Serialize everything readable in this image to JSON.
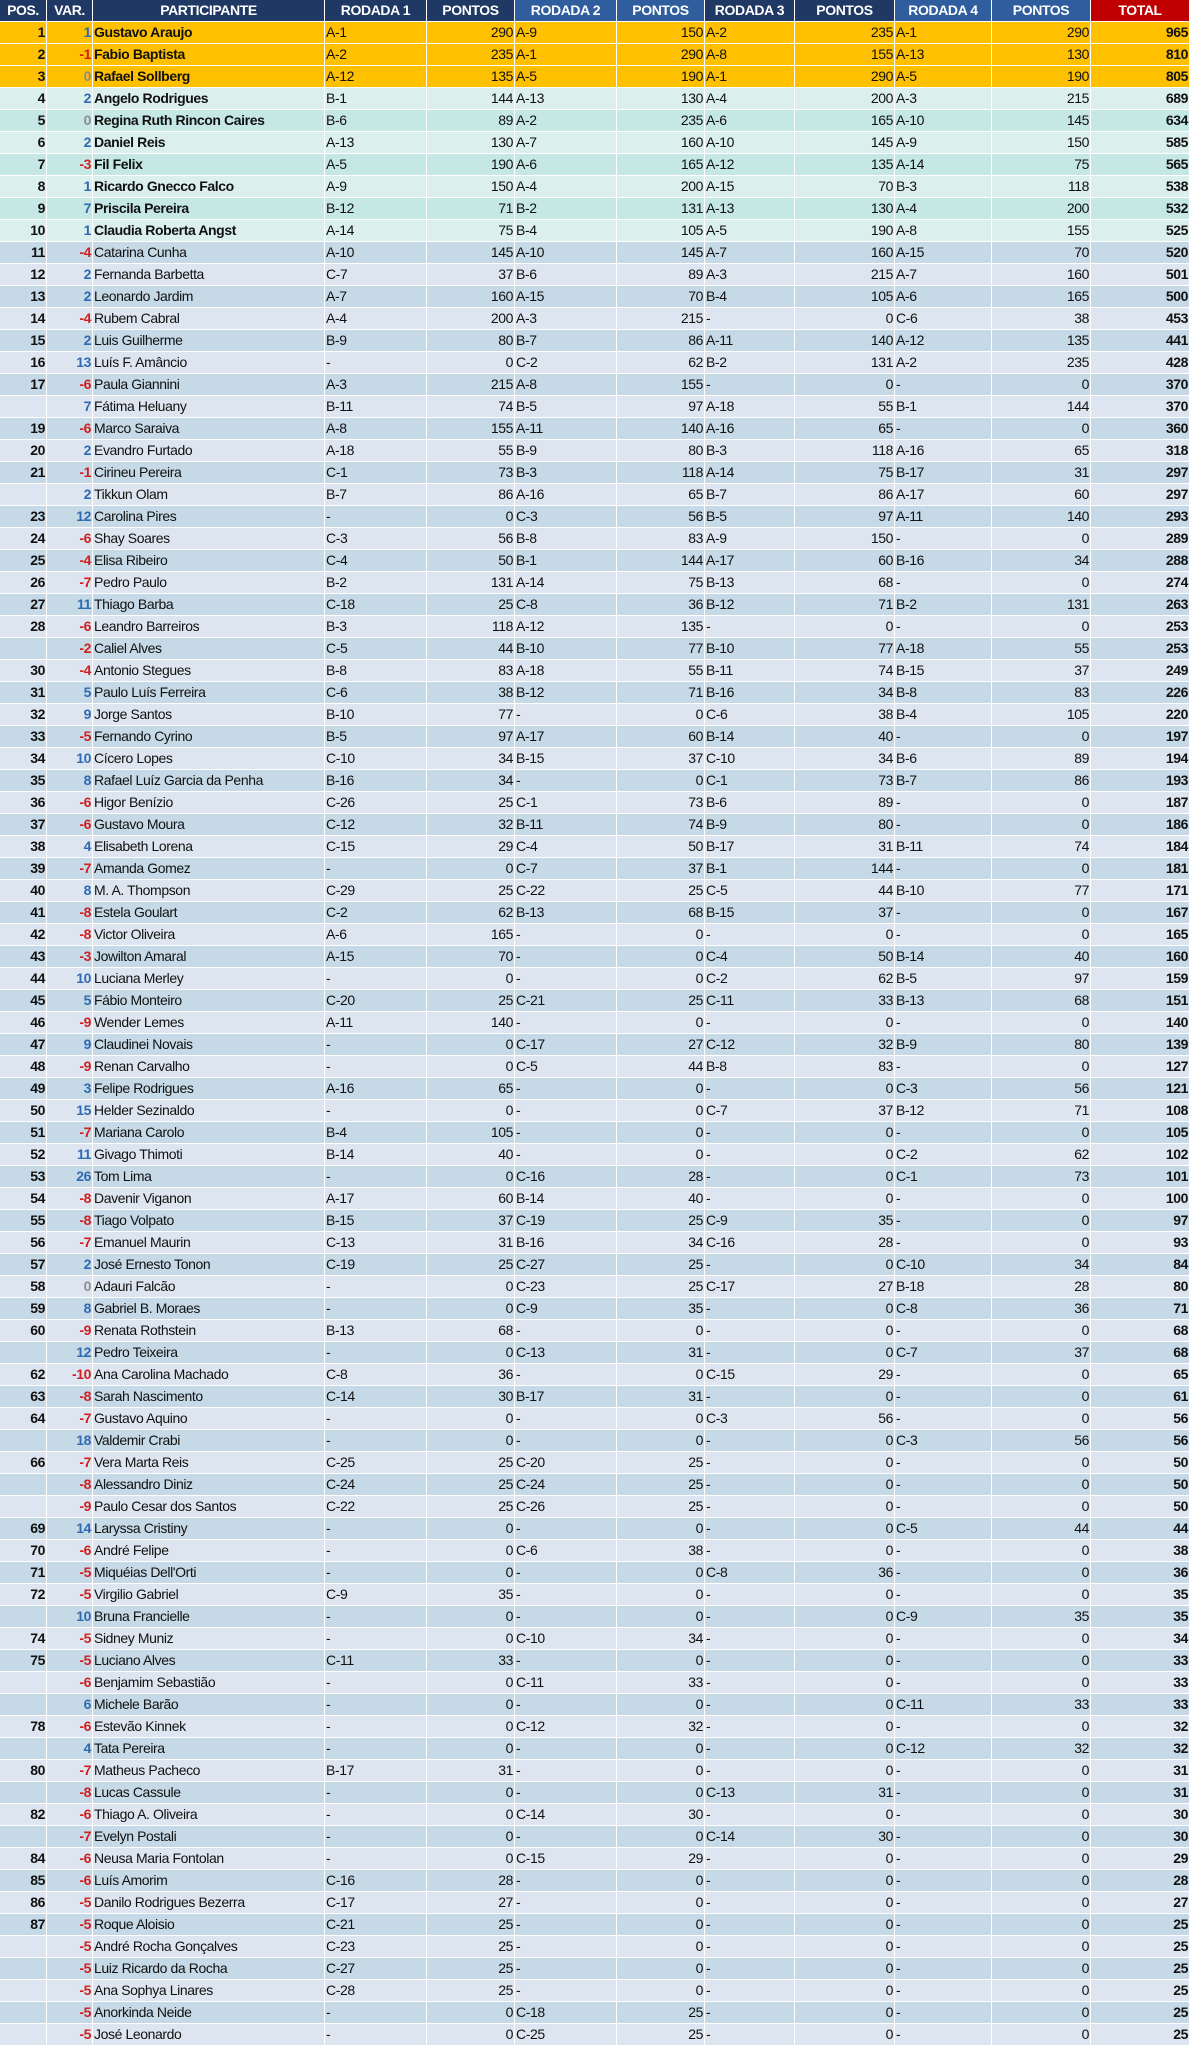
{
  "colors": {
    "header": "#203864",
    "header_alt": "#2f5d9e",
    "total_header": "#c00000",
    "top3": "#ffc000",
    "top10_a": "#c5e8e4",
    "top10_b": "#dbefed",
    "rest_a": "#c6d9e7",
    "rest_b": "#dde6f0",
    "var_positive": "#2e6ab3",
    "var_negative": "#d01f1f",
    "var_zero": "#8c8c8c"
  },
  "headers": [
    "POS.",
    "VAR.",
    "PARTICIPANTE",
    "RODADA 1",
    "PONTOS",
    "RODADA 2",
    "PONTOS",
    "RODADA 3",
    "PONTOS",
    "RODADA 4",
    "PONTOS",
    "TOTAL"
  ],
  "rows": [
    [
      "1",
      "1",
      "Gustavo Araujo",
      "A-1",
      "290",
      "A-9",
      "150",
      "A-2",
      "235",
      "A-1",
      "290",
      "965"
    ],
    [
      "2",
      "-1",
      "Fabio Baptista",
      "A-2",
      "235",
      "A-1",
      "290",
      "A-8",
      "155",
      "A-13",
      "130",
      "810"
    ],
    [
      "3",
      "0",
      "Rafael Sollberg",
      "A-12",
      "135",
      "A-5",
      "190",
      "A-1",
      "290",
      "A-5",
      "190",
      "805"
    ],
    [
      "4",
      "2",
      "Angelo Rodrigues",
      "B-1",
      "144",
      "A-13",
      "130",
      "A-4",
      "200",
      "A-3",
      "215",
      "689"
    ],
    [
      "5",
      "0",
      "Regina Ruth Rincon Caires",
      "B-6",
      "89",
      "A-2",
      "235",
      "A-6",
      "165",
      "A-10",
      "145",
      "634"
    ],
    [
      "6",
      "2",
      "Daniel Reis",
      "A-13",
      "130",
      "A-7",
      "160",
      "A-10",
      "145",
      "A-9",
      "150",
      "585"
    ],
    [
      "7",
      "-3",
      "Fil Felix",
      "A-5",
      "190",
      "A-6",
      "165",
      "A-12",
      "135",
      "A-14",
      "75",
      "565"
    ],
    [
      "8",
      "1",
      "Ricardo Gnecco Falco",
      "A-9",
      "150",
      "A-4",
      "200",
      "A-15",
      "70",
      "B-3",
      "118",
      "538"
    ],
    [
      "9",
      "7",
      "Priscila Pereira",
      "B-12",
      "71",
      "B-2",
      "131",
      "A-13",
      "130",
      "A-4",
      "200",
      "532"
    ],
    [
      "10",
      "1",
      "Claudia Roberta Angst",
      "A-14",
      "75",
      "B-4",
      "105",
      "A-5",
      "190",
      "A-8",
      "155",
      "525"
    ],
    [
      "11",
      "-4",
      "Catarina Cunha",
      "A-10",
      "145",
      "A-10",
      "145",
      "A-7",
      "160",
      "A-15",
      "70",
      "520"
    ],
    [
      "12",
      "2",
      "Fernanda Barbetta",
      "C-7",
      "37",
      "B-6",
      "89",
      "A-3",
      "215",
      "A-7",
      "160",
      "501"
    ],
    [
      "13",
      "2",
      "Leonardo Jardim",
      "A-7",
      "160",
      "A-15",
      "70",
      "B-4",
      "105",
      "A-6",
      "165",
      "500"
    ],
    [
      "14",
      "-4",
      "Rubem Cabral",
      "A-4",
      "200",
      "A-3",
      "215",
      "-",
      "0",
      "C-6",
      "38",
      "453"
    ],
    [
      "15",
      "2",
      "Luis Guilherme",
      "B-9",
      "80",
      "B-7",
      "86",
      "A-11",
      "140",
      "A-12",
      "135",
      "441"
    ],
    [
      "16",
      "13",
      "Luís F. Amâncio",
      "-",
      "0",
      "C-2",
      "62",
      "B-2",
      "131",
      "A-2",
      "235",
      "428"
    ],
    [
      "17",
      "-6",
      "Paula Giannini",
      "A-3",
      "215",
      "A-8",
      "155",
      "-",
      "0",
      "-",
      "0",
      "370"
    ],
    [
      "",
      "7",
      "Fátima Heluany",
      "B-11",
      "74",
      "B-5",
      "97",
      "A-18",
      "55",
      "B-1",
      "144",
      "370"
    ],
    [
      "19",
      "-6",
      "Marco Saraiva",
      "A-8",
      "155",
      "A-11",
      "140",
      "A-16",
      "65",
      "-",
      "0",
      "360"
    ],
    [
      "20",
      "2",
      "Evandro Furtado",
      "A-18",
      "55",
      "B-9",
      "80",
      "B-3",
      "118",
      "A-16",
      "65",
      "318"
    ],
    [
      "21",
      "-1",
      "Cirineu Pereira",
      "C-1",
      "73",
      "B-3",
      "118",
      "A-14",
      "75",
      "B-17",
      "31",
      "297"
    ],
    [
      "",
      "2",
      "Tikkun Olam",
      "B-7",
      "86",
      "A-16",
      "65",
      "B-7",
      "86",
      "A-17",
      "60",
      "297"
    ],
    [
      "23",
      "12",
      "Carolina Pires",
      "-",
      "0",
      "C-3",
      "56",
      "B-5",
      "97",
      "A-11",
      "140",
      "293"
    ],
    [
      "24",
      "-6",
      "Shay Soares",
      "C-3",
      "56",
      "B-8",
      "83",
      "A-9",
      "150",
      "-",
      "0",
      "289"
    ],
    [
      "25",
      "-4",
      "Elisa Ribeiro",
      "C-4",
      "50",
      "B-1",
      "144",
      "A-17",
      "60",
      "B-16",
      "34",
      "288"
    ],
    [
      "26",
      "-7",
      "Pedro Paulo",
      "B-2",
      "131",
      "A-14",
      "75",
      "B-13",
      "68",
      "-",
      "0",
      "274"
    ],
    [
      "27",
      "11",
      "Thiago Barba",
      "C-18",
      "25",
      "C-8",
      "36",
      "B-12",
      "71",
      "B-2",
      "131",
      "263"
    ],
    [
      "28",
      "-6",
      "Leandro Barreiros",
      "B-3",
      "118",
      "A-12",
      "135",
      "-",
      "0",
      "-",
      "0",
      "253"
    ],
    [
      "",
      "-2",
      "Caliel Alves",
      "C-5",
      "44",
      "B-10",
      "77",
      "B-10",
      "77",
      "A-18",
      "55",
      "253"
    ],
    [
      "30",
      "-4",
      "Antonio Stegues",
      "B-8",
      "83",
      "A-18",
      "55",
      "B-11",
      "74",
      "B-15",
      "37",
      "249"
    ],
    [
      "31",
      "5",
      "Paulo Luís Ferreira",
      "C-6",
      "38",
      "B-12",
      "71",
      "B-16",
      "34",
      "B-8",
      "83",
      "226"
    ],
    [
      "32",
      "9",
      "Jorge Santos",
      "B-10",
      "77",
      "-",
      "0",
      "C-6",
      "38",
      "B-4",
      "105",
      "220"
    ],
    [
      "33",
      "-5",
      "Fernando Cyrino",
      "B-5",
      "97",
      "A-17",
      "60",
      "B-14",
      "40",
      "-",
      "0",
      "197"
    ],
    [
      "34",
      "10",
      "Cícero Lopes",
      "C-10",
      "34",
      "B-15",
      "37",
      "C-10",
      "34",
      "B-6",
      "89",
      "194"
    ],
    [
      "35",
      "8",
      "Rafael Luíz Garcia da Penha",
      "B-16",
      "34",
      "-",
      "0",
      "C-1",
      "73",
      "B-7",
      "86",
      "193"
    ],
    [
      "36",
      "-6",
      "Higor Benízio",
      "C-26",
      "25",
      "C-1",
      "73",
      "B-6",
      "89",
      "-",
      "0",
      "187"
    ],
    [
      "37",
      "-6",
      "Gustavo Moura",
      "C-12",
      "32",
      "B-11",
      "74",
      "B-9",
      "80",
      "-",
      "0",
      "186"
    ],
    [
      "38",
      "4",
      "Elisabeth Lorena",
      "C-15",
      "29",
      "C-4",
      "50",
      "B-17",
      "31",
      "B-11",
      "74",
      "184"
    ],
    [
      "39",
      "-7",
      "Amanda Gomez",
      "-",
      "0",
      "C-7",
      "37",
      "B-1",
      "144",
      "-",
      "0",
      "181"
    ],
    [
      "40",
      "8",
      "M. A. Thompson",
      "C-29",
      "25",
      "C-22",
      "25",
      "C-5",
      "44",
      "B-10",
      "77",
      "171"
    ],
    [
      "41",
      "-8",
      "Estela Goulart",
      "C-2",
      "62",
      "B-13",
      "68",
      "B-15",
      "37",
      "-",
      "0",
      "167"
    ],
    [
      "42",
      "-8",
      "Victor Oliveira",
      "A-6",
      "165",
      "-",
      "0",
      "-",
      "0",
      "-",
      "0",
      "165"
    ],
    [
      "43",
      "-3",
      "Jowilton Amaral",
      "A-15",
      "70",
      "-",
      "0",
      "C-4",
      "50",
      "B-14",
      "40",
      "160"
    ],
    [
      "44",
      "10",
      "Luciana Merley",
      "-",
      "0",
      "-",
      "0",
      "C-2",
      "62",
      "B-5",
      "97",
      "159"
    ],
    [
      "45",
      "5",
      "Fábio Monteiro",
      "C-20",
      "25",
      "C-21",
      "25",
      "C-11",
      "33",
      "B-13",
      "68",
      "151"
    ],
    [
      "46",
      "-9",
      "Wender Lemes",
      "A-11",
      "140",
      "-",
      "0",
      "-",
      "0",
      "-",
      "0",
      "140"
    ],
    [
      "47",
      "9",
      "Claudinei Novais",
      "-",
      "0",
      "C-17",
      "27",
      "C-12",
      "32",
      "B-9",
      "80",
      "139"
    ],
    [
      "48",
      "-9",
      "Renan Carvalho",
      "-",
      "0",
      "C-5",
      "44",
      "B-8",
      "83",
      "-",
      "0",
      "127"
    ],
    [
      "49",
      "3",
      "Felipe Rodrigues",
      "A-16",
      "65",
      "-",
      "0",
      "-",
      "0",
      "C-3",
      "56",
      "121"
    ],
    [
      "50",
      "15",
      "Helder Sezinaldo",
      "-",
      "0",
      "-",
      "0",
      "C-7",
      "37",
      "B-12",
      "71",
      "108"
    ],
    [
      "51",
      "-7",
      "Mariana Carolo",
      "B-4",
      "105",
      "-",
      "0",
      "-",
      "0",
      "-",
      "0",
      "105"
    ],
    [
      "52",
      "11",
      "Givago Thimoti",
      "B-14",
      "40",
      "-",
      "0",
      "-",
      "0",
      "C-2",
      "62",
      "102"
    ],
    [
      "53",
      "26",
      "Tom Lima",
      "-",
      "0",
      "C-16",
      "28",
      "-",
      "0",
      "C-1",
      "73",
      "101"
    ],
    [
      "54",
      "-8",
      "Davenir Viganon",
      "A-17",
      "60",
      "B-14",
      "40",
      "-",
      "0",
      "-",
      "0",
      "100"
    ],
    [
      "55",
      "-8",
      "Tiago Volpato",
      "B-15",
      "37",
      "C-19",
      "25",
      "C-9",
      "35",
      "-",
      "0",
      "97"
    ],
    [
      "56",
      "-7",
      "Emanuel Maurin",
      "C-13",
      "31",
      "B-16",
      "34",
      "C-16",
      "28",
      "-",
      "0",
      "93"
    ],
    [
      "57",
      "2",
      "José Ernesto Tonon",
      "C-19",
      "25",
      "C-27",
      "25",
      "-",
      "0",
      "C-10",
      "34",
      "84"
    ],
    [
      "58",
      "0",
      "Adauri Falcão",
      "-",
      "0",
      "C-23",
      "25",
      "C-17",
      "27",
      "B-18",
      "28",
      "80"
    ],
    [
      "59",
      "8",
      "Gabriel B. Moraes",
      "-",
      "0",
      "C-9",
      "35",
      "-",
      "0",
      "C-8",
      "36",
      "71"
    ],
    [
      "60",
      "-9",
      "Renata Rothstein",
      "B-13",
      "68",
      "-",
      "0",
      "-",
      "0",
      "-",
      "0",
      "68"
    ],
    [
      "",
      "12",
      "Pedro Teixeira",
      "-",
      "0",
      "C-13",
      "31",
      "-",
      "0",
      "C-7",
      "37",
      "68"
    ],
    [
      "62",
      "-10",
      "Ana Carolina Machado",
      "C-8",
      "36",
      "-",
      "0",
      "C-15",
      "29",
      "-",
      "0",
      "65"
    ],
    [
      "63",
      "-8",
      "Sarah Nascimento",
      "C-14",
      "30",
      "B-17",
      "31",
      "-",
      "0",
      "-",
      "0",
      "61"
    ],
    [
      "64",
      "-7",
      "Gustavo Aquino",
      "-",
      "0",
      "-",
      "0",
      "C-3",
      "56",
      "-",
      "0",
      "56"
    ],
    [
      "",
      "18",
      "Valdemir Crabi",
      "-",
      "0",
      "-",
      "0",
      "-",
      "0",
      "C-3",
      "56",
      "56"
    ],
    [
      "66",
      "-7",
      "Vera Marta Reis",
      "C-25",
      "25",
      "C-20",
      "25",
      "-",
      "0",
      "-",
      "0",
      "50"
    ],
    [
      "",
      "-8",
      "Alessandro Diniz",
      "C-24",
      "25",
      "C-24",
      "25",
      "-",
      "0",
      "-",
      "0",
      "50"
    ],
    [
      "",
      "-9",
      "Paulo Cesar dos Santos",
      "C-22",
      "25",
      "C-26",
      "25",
      "-",
      "0",
      "-",
      "0",
      "50"
    ],
    [
      "69",
      "14",
      "Laryssa Cristiny",
      "-",
      "0",
      "-",
      "0",
      "-",
      "0",
      "C-5",
      "44",
      "44"
    ],
    [
      "70",
      "-6",
      "André Felipe",
      "-",
      "0",
      "C-6",
      "38",
      "-",
      "0",
      "-",
      "0",
      "38"
    ],
    [
      "71",
      "-5",
      "Miquéias Dell'Orti",
      "-",
      "0",
      "-",
      "0",
      "C-8",
      "36",
      "-",
      "0",
      "36"
    ],
    [
      "72",
      "-5",
      "Virgilio Gabriel",
      "C-9",
      "35",
      "-",
      "0",
      "-",
      "0",
      "-",
      "0",
      "35"
    ],
    [
      "",
      "10",
      "Bruna Francielle",
      "-",
      "0",
      "-",
      "0",
      "-",
      "0",
      "C-9",
      "35",
      "35"
    ],
    [
      "74",
      "-5",
      "Sidney Muniz",
      "-",
      "0",
      "C-10",
      "34",
      "-",
      "0",
      "-",
      "0",
      "34"
    ],
    [
      "75",
      "-5",
      "Luciano Alves",
      "C-11",
      "33",
      "-",
      "0",
      "-",
      "0",
      "-",
      "0",
      "33"
    ],
    [
      "",
      "-6",
      "Benjamim Sebastião",
      "-",
      "0",
      "C-11",
      "33",
      "-",
      "0",
      "-",
      "0",
      "33"
    ],
    [
      "",
      "6",
      "Michele Barão",
      "-",
      "0",
      "-",
      "0",
      "-",
      "0",
      "C-11",
      "33",
      "33"
    ],
    [
      "78",
      "-6",
      "Estevão Kinnek",
      "-",
      "0",
      "C-12",
      "32",
      "-",
      "0",
      "-",
      "0",
      "32"
    ],
    [
      "",
      "4",
      "Tata Pereira",
      "-",
      "0",
      "-",
      "0",
      "-",
      "0",
      "C-12",
      "32",
      "32"
    ],
    [
      "80",
      "-7",
      "Matheus Pacheco",
      "B-17",
      "31",
      "-",
      "0",
      "-",
      "0",
      "-",
      "0",
      "31"
    ],
    [
      "",
      "-8",
      "Lucas Cassule",
      "-",
      "0",
      "-",
      "0",
      "C-13",
      "31",
      "-",
      "0",
      "31"
    ],
    [
      "82",
      "-6",
      "Thiago A. Oliveira",
      "-",
      "0",
      "C-14",
      "30",
      "-",
      "0",
      "-",
      "0",
      "30"
    ],
    [
      "",
      "-7",
      "Evelyn Postali",
      "-",
      "0",
      "-",
      "0",
      "C-14",
      "30",
      "-",
      "0",
      "30"
    ],
    [
      "84",
      "-6",
      "Neusa Maria Fontolan",
      "-",
      "0",
      "C-15",
      "29",
      "-",
      "0",
      "-",
      "0",
      "29"
    ],
    [
      "85",
      "-6",
      "Luís Amorim",
      "C-16",
      "28",
      "-",
      "0",
      "-",
      "0",
      "-",
      "0",
      "28"
    ],
    [
      "86",
      "-5",
      "Danilo Rodrigues Bezerra",
      "C-17",
      "27",
      "-",
      "0",
      "-",
      "0",
      "-",
      "0",
      "27"
    ],
    [
      "87",
      "-5",
      "Roque Aloisio",
      "C-21",
      "25",
      "-",
      "0",
      "-",
      "0",
      "-",
      "0",
      "25"
    ],
    [
      "",
      "-5",
      "André Rocha Gonçalves",
      "C-23",
      "25",
      "-",
      "0",
      "-",
      "0",
      "-",
      "0",
      "25"
    ],
    [
      "",
      "-5",
      "Luiz Ricardo da Rocha",
      "C-27",
      "25",
      "-",
      "0",
      "-",
      "0",
      "-",
      "0",
      "25"
    ],
    [
      "",
      "-5",
      "Ana Sophya Linares",
      "C-28",
      "25",
      "-",
      "0",
      "-",
      "0",
      "-",
      "0",
      "25"
    ],
    [
      "",
      "-5",
      "Anorkinda Neide",
      "-",
      "0",
      "C-18",
      "25",
      "-",
      "0",
      "-",
      "0",
      "25"
    ],
    [
      "",
      "-5",
      "José Leonardo",
      "-",
      "0",
      "C-25",
      "25",
      "-",
      "0",
      "-",
      "0",
      "25"
    ]
  ]
}
